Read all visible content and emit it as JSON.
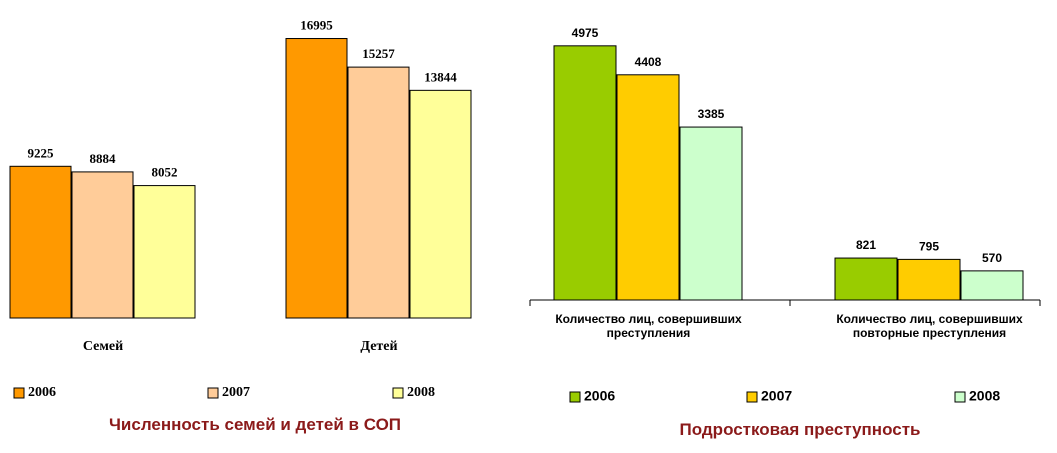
{
  "chart_data": [
    {
      "type": "bar",
      "title": "Численность семей и детей в СОП",
      "categories": [
        "Семей",
        "Детей"
      ],
      "series": [
        {
          "name": "2006",
          "color": "#ff9900",
          "values": [
            9225,
            16995
          ]
        },
        {
          "name": "2007",
          "color": "#ffcc99",
          "values": [
            8884,
            15257
          ]
        },
        {
          "name": "2008",
          "color": "#ffff99",
          "values": [
            8052,
            13844
          ]
        }
      ],
      "ylim": [
        0,
        18000
      ]
    },
    {
      "type": "bar",
      "title": "Подростковая преступность",
      "categories": [
        "Количество лиц, совершивших преступления",
        "Количество лиц, совершивших повторные преступления"
      ],
      "series": [
        {
          "name": "2006",
          "color": "#99cc00",
          "values": [
            4975,
            821
          ]
        },
        {
          "name": "2007",
          "color": "#ffcc00",
          "values": [
            4408,
            795
          ]
        },
        {
          "name": "2008",
          "color": "#ccffcc",
          "values": [
            3385,
            570
          ]
        }
      ],
      "ylim": [
        0,
        5500
      ]
    }
  ]
}
